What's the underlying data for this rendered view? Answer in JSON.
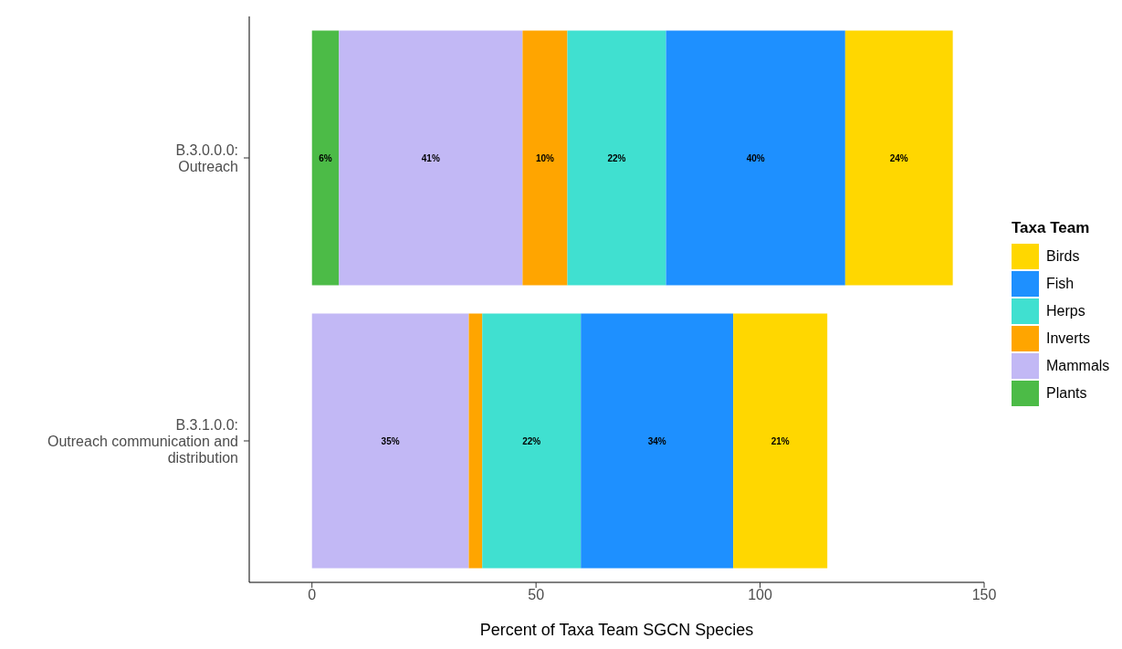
{
  "chart_data": {
    "type": "bar",
    "orientation": "horizontal",
    "stacked": true,
    "xlabel": "Percent of Taxa Team SGCN Species",
    "legend_title": "Taxa Team",
    "legend": "right",
    "grid": false,
    "categories": [
      "B.3.0.0.0:\nOutreach",
      "B.3.1.0.0:\nOutreach communication and\ndistribution"
    ],
    "xlim": [
      -14,
      150
    ],
    "xticks": [
      0,
      50,
      100,
      150
    ],
    "series": [
      {
        "name": "Plants",
        "color": "#4cbb47",
        "values": [
          6,
          null
        ],
        "value_labels": [
          "6%",
          null
        ]
      },
      {
        "name": "Mammals",
        "color": "#c2b8f5",
        "values": [
          41,
          35
        ],
        "value_labels": [
          "41%",
          "35%"
        ]
      },
      {
        "name": "Inverts",
        "color": "#ffa500",
        "values": [
          10,
          3
        ],
        "value_labels": [
          "10%",
          null
        ]
      },
      {
        "name": "Herps",
        "color": "#40e0d0",
        "values": [
          22,
          22
        ],
        "value_labels": [
          "22%",
          "22%"
        ]
      },
      {
        "name": "Fish",
        "color": "#1e90ff",
        "values": [
          40,
          34
        ],
        "value_labels": [
          "40%",
          "34%"
        ]
      },
      {
        "name": "Birds",
        "color": "#ffd700",
        "values": [
          24,
          21
        ],
        "value_labels": [
          "24%",
          "21%"
        ]
      }
    ]
  }
}
